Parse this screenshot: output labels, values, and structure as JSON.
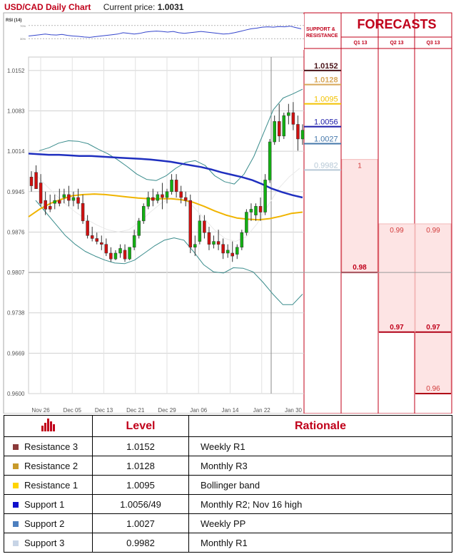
{
  "header": {
    "pair": "USD/CAD Daily Chart",
    "current_price_label": "Current price:",
    "current_price": "1.0031"
  },
  "rsi": {
    "label": "RSI (14)",
    "upper_label": "70%",
    "lower_label": "30%",
    "values": [
      38,
      40,
      42,
      44,
      42,
      41,
      43,
      40,
      38,
      37,
      35,
      34,
      36,
      38,
      40,
      42,
      44,
      48,
      46,
      44,
      46,
      50,
      52,
      53,
      52,
      50,
      52,
      48,
      46,
      48,
      50,
      52,
      50,
      48,
      46,
      44,
      45,
      48,
      52,
      56,
      60,
      62,
      65,
      66,
      65,
      67,
      66,
      68,
      64,
      60
    ]
  },
  "chart_data": {
    "type": "candlestick",
    "ylim": [
      0.96,
      1.0175
    ],
    "y_ticks": [
      "1.0152",
      "1.0083",
      "1.0014",
      "0.9945",
      "0.9876",
      "0.9807",
      "0.9738",
      "0.9669",
      "0.9600"
    ],
    "x_ticks": [
      "Nov 26",
      "Dec 05",
      "Dec 13",
      "Dec 21",
      "Dec 29",
      "Jan 06",
      "Jan 14",
      "Jan 22",
      "Jan 30"
    ],
    "candles": [
      [
        0.997,
        0.998,
        0.9955,
        0.9945
      ],
      [
        0.9978,
        0.999,
        0.995,
        0.996
      ],
      [
        0.996,
        0.9975,
        0.9925,
        0.992
      ],
      [
        0.993,
        0.9945,
        0.9915,
        0.9905
      ],
      [
        0.992,
        0.994,
        0.9915,
        0.991
      ],
      [
        0.9925,
        0.994,
        0.993,
        0.9915
      ],
      [
        0.993,
        0.995,
        0.9925,
        0.992
      ],
      [
        0.9935,
        0.995,
        0.994,
        0.9925
      ],
      [
        0.994,
        0.9955,
        0.993,
        0.992
      ],
      [
        0.993,
        0.9945,
        0.9935,
        0.992
      ],
      [
        0.9935,
        0.995,
        0.9925,
        0.9915
      ],
      [
        0.9925,
        0.994,
        0.9895,
        0.989
      ],
      [
        0.9895,
        0.9905,
        0.987,
        0.9865
      ],
      [
        0.987,
        0.9885,
        0.9865,
        0.986
      ],
      [
        0.9865,
        0.9875,
        0.986,
        0.9855
      ],
      [
        0.9858,
        0.987,
        0.9855,
        0.9845
      ],
      [
        0.9855,
        0.9865,
        0.984,
        0.9835
      ],
      [
        0.984,
        0.985,
        0.983,
        0.9825
      ],
      [
        0.983,
        0.9845,
        0.984,
        0.9828
      ],
      [
        0.984,
        0.9855,
        0.9848,
        0.9832
      ],
      [
        0.9845,
        0.9855,
        0.983,
        0.9825
      ],
      [
        0.983,
        0.9845,
        0.985,
        0.9828
      ],
      [
        0.985,
        0.988,
        0.987,
        0.9845
      ],
      [
        0.987,
        0.99,
        0.9895,
        0.9865
      ],
      [
        0.9895,
        0.9925,
        0.992,
        0.989
      ],
      [
        0.992,
        0.9945,
        0.9935,
        0.9915
      ],
      [
        0.9935,
        0.995,
        0.993,
        0.992
      ],
      [
        0.993,
        0.9945,
        0.994,
        0.9925
      ],
      [
        0.994,
        0.996,
        0.9935,
        0.9915
      ],
      [
        0.9935,
        0.995,
        0.9945,
        0.9925
      ],
      [
        0.9945,
        0.9975,
        0.9965,
        0.994
      ],
      [
        0.9965,
        0.9975,
        0.9945,
        0.9935
      ],
      [
        0.9945,
        0.9955,
        0.9935,
        0.9925
      ],
      [
        0.9935,
        0.9945,
        0.993,
        0.992
      ],
      [
        0.993,
        0.994,
        0.985,
        0.984
      ],
      [
        0.985,
        0.987,
        0.9855,
        0.9835
      ],
      [
        0.986,
        0.9905,
        0.9895,
        0.9855
      ],
      [
        0.9895,
        0.9905,
        0.9875,
        0.9865
      ],
      [
        0.9875,
        0.9885,
        0.9855,
        0.9845
      ],
      [
        0.9855,
        0.987,
        0.986,
        0.9848
      ],
      [
        0.986,
        0.988,
        0.9855,
        0.9845
      ],
      [
        0.9855,
        0.9865,
        0.984,
        0.983
      ],
      [
        0.984,
        0.9855,
        0.9845,
        0.9832
      ],
      [
        0.984,
        0.986,
        0.9835,
        0.9825
      ],
      [
        0.9838,
        0.9855,
        0.985,
        0.983
      ],
      [
        0.985,
        0.988,
        0.9875,
        0.9845
      ],
      [
        0.9875,
        0.9915,
        0.991,
        0.987
      ],
      [
        0.991,
        0.9925,
        0.9915,
        0.9895
      ],
      [
        0.9905,
        0.9925,
        0.992,
        0.9895
      ],
      [
        0.992,
        0.9935,
        0.991,
        0.9895
      ],
      [
        0.991,
        0.9975,
        0.9965,
        0.9905
      ],
      [
        0.9965,
        1.0035,
        1.003,
        0.996
      ],
      [
        1.003,
        1.0075,
        1.0065,
        1.0025
      ],
      [
        1.0065,
        1.0095,
        1.004,
        1.003
      ],
      [
        1.004,
        1.008,
        1.0075,
        1.0035
      ],
      [
        1.0075,
        1.0095,
        1.008,
        1.006
      ],
      [
        1.008,
        1.0098,
        1.006,
        1.005
      ],
      [
        1.006,
        1.0075,
        1.0035,
        1.0015
      ],
      [
        1.0035,
        1.006,
        1.005,
        1.0025
      ]
    ],
    "sma_blue": [
      1.001,
      1.0009,
      1.0008,
      1.0008,
      1.0007,
      1.0006,
      1.0006,
      1.0005,
      1.0004,
      1.0003,
      1.0002,
      1.0001,
      1.0,
      0.9998,
      0.9996,
      0.9993,
      0.999,
      0.9987,
      0.9983,
      0.9978,
      0.9974,
      0.997,
      0.9965,
      0.9958,
      0.995,
      0.9944,
      0.9939,
      0.9935
    ],
    "sma_orange": [
      0.9902,
      0.9915,
      0.9925,
      0.9932,
      0.9938,
      0.994,
      0.9941,
      0.994,
      0.9938,
      0.9936,
      0.9934,
      0.9933,
      0.9933,
      0.9933,
      0.9931,
      0.9927,
      0.992,
      0.9912,
      0.9905,
      0.99,
      0.9898,
      0.9897,
      0.9899,
      0.9903,
      0.9908,
      0.991
    ],
    "bb_upper": [
      1.0015,
      1.002,
      1.0028,
      1.0032,
      1.0031,
      1.0027,
      1.0018,
      1.001,
      1.0,
      0.9988,
      0.9975,
      0.9966,
      0.9964,
      0.9972,
      0.9985,
      0.9995,
      0.9998,
      0.999,
      0.9972,
      0.9962,
      0.9958,
      0.9975,
      1.0005,
      1.0045,
      1.0085,
      1.0105,
      1.0112,
      1.012
    ],
    "bb_lower": [
      0.993,
      0.991,
      0.989,
      0.987,
      0.9855,
      0.9843,
      0.9835,
      0.9828,
      0.9823,
      0.9822,
      0.9828,
      0.984,
      0.9852,
      0.9862,
      0.9866,
      0.9862,
      0.9842,
      0.982,
      0.9808,
      0.9806,
      0.9815,
      0.9814,
      0.9808,
      0.979,
      0.977,
      0.9752,
      0.9752,
      0.977
    ],
    "bb_mid": [
      0.998,
      0.996,
      0.9942,
      0.9925,
      0.991,
      0.9898,
      0.9888,
      0.988,
      0.9876,
      0.988,
      0.9893,
      0.991,
      0.9925,
      0.9935,
      0.9933,
      0.992,
      0.99,
      0.988,
      0.9865,
      0.986,
      0.9868,
      0.989,
      0.992,
      0.995,
      0.997,
      0.9985
    ]
  },
  "levels": [
    {
      "value": "1.0152",
      "color": "#4a1419",
      "line_value": 1.0152
    },
    {
      "value": "1.0128",
      "color": "#d8a85a",
      "line_value": 1.0128
    },
    {
      "value": "1.0095",
      "color": "#f2c200",
      "line_value": 1.0095
    },
    {
      "value": "1.0056",
      "color": "#1a1aa8",
      "line_value": 1.0056
    },
    {
      "value": "1.0027",
      "color": "#4477aa",
      "line_value": 1.0027
    },
    {
      "value": "0.9982",
      "color": "#b6c8d6",
      "line_value": 0.9982
    }
  ],
  "panel": {
    "support_resistance_label": "SUPPORT & RESISTANCE",
    "forecasts_title": "FORECASTS",
    "quarters": [
      {
        "label": "Q1 13",
        "top": "1",
        "bottom": "0.98",
        "top_value": 1.0,
        "bottom_value": 0.9807
      },
      {
        "label": "Q2 13",
        "top": "0.99",
        "bottom": "0.97",
        "top_value": 0.989,
        "bottom_value": 0.9705
      },
      {
        "label": "Q3 13",
        "top": "0.99",
        "bottom": "0.96",
        "top_value": 0.989,
        "bottom_value": 0.96,
        "mid_label": "0.97",
        "mid_value": 0.9705
      }
    ]
  },
  "table": {
    "col_level": "Level",
    "col_rationale": "Rationale",
    "rows": [
      {
        "name": "Resistance 3",
        "level": "1.0152",
        "rationale": "Weekly R1",
        "color": "#8b3a3a"
      },
      {
        "name": "Resistance 2",
        "level": "1.0128",
        "rationale": "Monthly R3",
        "color": "#c89a2a"
      },
      {
        "name": "Resistance 1",
        "level": "1.0095",
        "rationale": "Bollinger band",
        "color": "#ffd400"
      },
      {
        "name": "Support 1",
        "level": "1.0056/49",
        "rationale": "Monthly R2; Nov 16 high",
        "color": "#1010cc"
      },
      {
        "name": "Support 2",
        "level": "1.0027",
        "rationale": "Weekly PP",
        "color": "#4d7fbf"
      },
      {
        "name": "Support 3",
        "level": "0.9982",
        "rationale": "Monthly R1",
        "color": "#c7d4e6"
      }
    ]
  }
}
